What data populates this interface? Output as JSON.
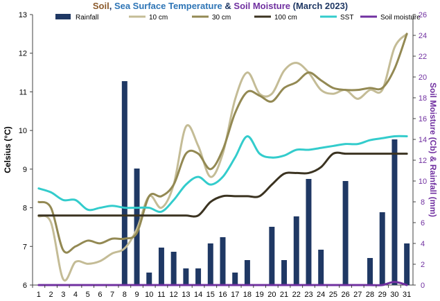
{
  "chart_data": {
    "type": "bar+line",
    "title_parts": [
      {
        "text": "Soil",
        "color": "#8b5a2b"
      },
      {
        "text": ", ",
        "color": "#1f3864"
      },
      {
        "text": "Sea Surface Temperature",
        "color": "#2e75b6"
      },
      {
        "text": " & ",
        "color": "#1f3864"
      },
      {
        "text": "Soil Moisture",
        "color": "#7030a0"
      },
      {
        "text": " (March 2023)",
        "color": "#1f3864"
      }
    ],
    "ylabel_left": "Celsius (°C)",
    "ylabel_right": "Soil Moisture (Cb) & Rainfall (mm)",
    "ylim_left": [
      6,
      13
    ],
    "yticks_left": [
      "6",
      "7",
      "8",
      "9",
      "10",
      "11",
      "12",
      "13"
    ],
    "ylim_right": [
      0,
      26
    ],
    "yticks_right": [
      "0",
      "2",
      "4",
      "6",
      "8",
      "10",
      "12",
      "14",
      "16",
      "18",
      "20",
      "22",
      "24",
      "26"
    ],
    "x": [
      "1",
      "2",
      "3",
      "4",
      "5",
      "6",
      "7",
      "8",
      "9",
      "10",
      "11",
      "12",
      "13",
      "14",
      "15",
      "16",
      "17",
      "18",
      "19",
      "20",
      "21",
      "22",
      "23",
      "24",
      "25",
      "26",
      "27",
      "28",
      "29",
      "30",
      "31"
    ],
    "rainfall": {
      "name": "Rainfall",
      "color": "#1f3864",
      "axis": "right",
      "values": [
        0,
        0,
        0,
        0,
        0,
        0,
        0,
        19.6,
        11.2,
        1.2,
        3.6,
        3.2,
        1.6,
        1.6,
        4.0,
        4.6,
        1.2,
        2.4,
        0,
        5.6,
        2.4,
        6.6,
        10.2,
        3.4,
        0,
        10.0,
        0,
        2.6,
        7.0,
        14.0,
        4.0
      ]
    },
    "series": [
      {
        "name": "10 cm",
        "color": "#c4bc96",
        "axis": "left",
        "values": [
          7.78,
          7.62,
          6.15,
          6.6,
          6.55,
          6.62,
          6.82,
          6.95,
          7.45,
          8.3,
          8.0,
          8.6,
          10.1,
          9.6,
          8.8,
          9.4,
          10.8,
          11.5,
          10.95,
          10.95,
          11.55,
          11.75,
          11.5,
          11.05,
          10.95,
          11.05,
          10.82,
          11.05,
          11.05,
          12.15,
          12.5
        ]
      },
      {
        "name": "30 cm",
        "color": "#938953",
        "axis": "left",
        "values": [
          8.15,
          8.0,
          6.9,
          7.0,
          7.15,
          7.08,
          7.2,
          7.2,
          7.35,
          8.3,
          8.3,
          8.6,
          9.4,
          9.4,
          9.0,
          9.5,
          10.45,
          11.0,
          10.9,
          10.75,
          11.1,
          11.25,
          11.5,
          11.3,
          11.1,
          11.05,
          11.05,
          11.1,
          11.1,
          11.6,
          12.5
        ]
      },
      {
        "name": "100 cm",
        "color": "#3b3321",
        "axis": "left",
        "values": [
          7.8,
          7.8,
          7.8,
          7.8,
          7.8,
          7.8,
          7.8,
          7.8,
          7.8,
          7.8,
          7.8,
          7.8,
          7.8,
          7.8,
          8.15,
          8.3,
          8.3,
          8.3,
          8.3,
          8.6,
          8.88,
          8.9,
          8.9,
          9.05,
          9.4,
          9.4,
          9.4,
          9.4,
          9.4,
          9.4,
          9.4
        ]
      },
      {
        "name": "SST",
        "color": "#33cccc",
        "axis": "left",
        "values": [
          8.5,
          8.4,
          8.2,
          8.2,
          7.95,
          8.0,
          8.05,
          8.0,
          8.0,
          8.0,
          7.9,
          8.2,
          8.6,
          8.8,
          8.6,
          8.8,
          9.3,
          9.85,
          9.4,
          9.3,
          9.35,
          9.5,
          9.5,
          9.55,
          9.6,
          9.65,
          9.65,
          9.75,
          9.8,
          9.85,
          9.85
        ]
      },
      {
        "name": "Soil moisture",
        "color": "#7030a0",
        "axis": "right",
        "values": [
          0,
          0,
          0,
          0,
          0,
          0,
          0,
          0,
          0,
          0,
          0,
          0,
          0,
          0,
          0,
          0,
          0,
          0,
          0,
          0,
          0,
          0,
          0,
          0,
          0,
          0,
          0,
          0,
          0,
          0.3,
          0
        ]
      }
    ],
    "legend_position": "top",
    "grid": false
  }
}
